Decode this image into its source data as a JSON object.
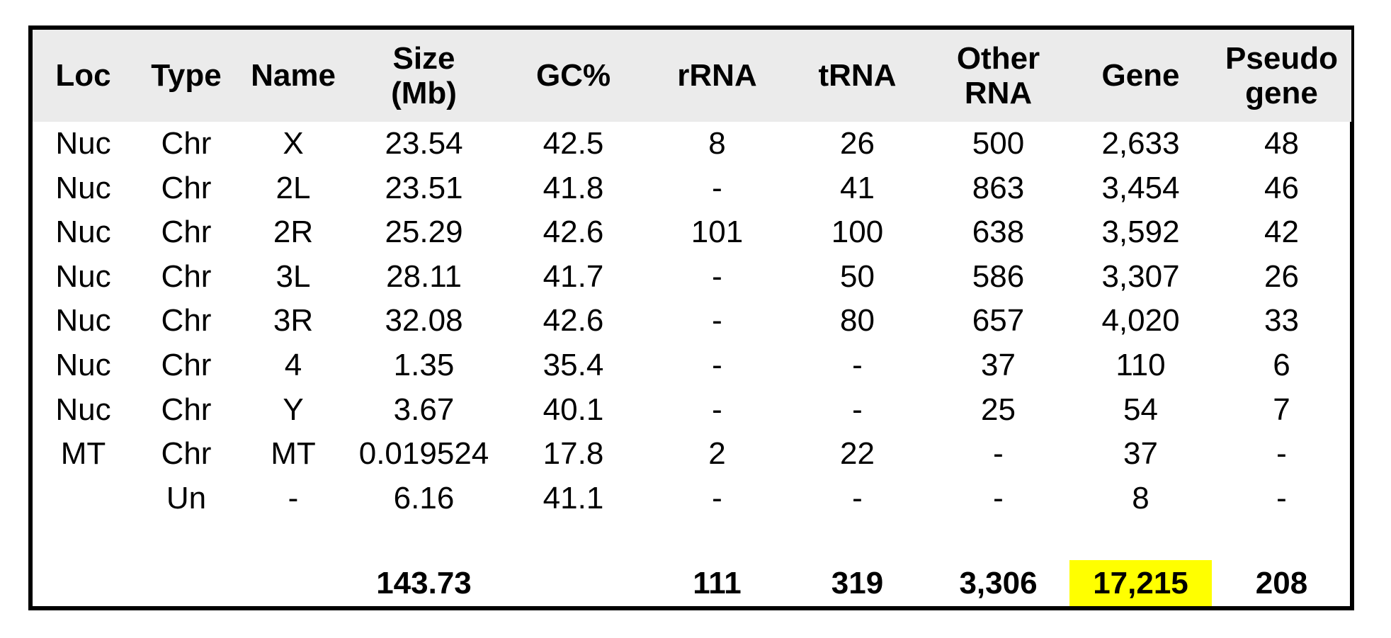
{
  "colors": {
    "header_bg": "#EBEBEB",
    "highlight": "#FFFF00",
    "border": "#000000",
    "text": "#000000"
  },
  "chart_data": {
    "type": "table",
    "title": "",
    "columns": [
      "Loc",
      "Type",
      "Name",
      "Size\n(Mb)",
      "GC%",
      "rRNA",
      "tRNA",
      "Other\nRNA",
      "Gene",
      "Pseudo\ngene"
    ],
    "rows": [
      [
        "Nuc",
        "Chr",
        "X",
        "23.54",
        "42.5",
        "8",
        "26",
        "500",
        "2,633",
        "48"
      ],
      [
        "Nuc",
        "Chr",
        "2L",
        "23.51",
        "41.8",
        "-",
        "41",
        "863",
        "3,454",
        "46"
      ],
      [
        "Nuc",
        "Chr",
        "2R",
        "25.29",
        "42.6",
        "101",
        "100",
        "638",
        "3,592",
        "42"
      ],
      [
        "Nuc",
        "Chr",
        "3L",
        "28.11",
        "41.7",
        "-",
        "50",
        "586",
        "3,307",
        "26"
      ],
      [
        "Nuc",
        "Chr",
        "3R",
        "32.08",
        "42.6",
        "-",
        "80",
        "657",
        "4,020",
        "33"
      ],
      [
        "Nuc",
        "Chr",
        "4",
        "1.35",
        "35.4",
        "-",
        "-",
        "37",
        "110",
        "6"
      ],
      [
        "Nuc",
        "Chr",
        "Y",
        "3.67",
        "40.1",
        "-",
        "-",
        "25",
        "54",
        "7"
      ],
      [
        "MT",
        "Chr",
        "MT",
        "0.019524",
        "17.8",
        "2",
        "22",
        "-",
        "37",
        "-"
      ],
      [
        "",
        "Un",
        "-",
        "6.16",
        "41.1",
        "-",
        "-",
        "-",
        "8",
        "-"
      ]
    ],
    "totals_row": [
      "",
      "",
      "",
      "143.73",
      "",
      "111",
      "319",
      "3,306",
      "17,215",
      "208"
    ],
    "highlight": {
      "row": "totals",
      "column": "Gene",
      "value": "17,215",
      "color": "#FFFF00"
    },
    "layout": {
      "gridlines": false,
      "outer_border": true,
      "header_background": "#EBEBEB",
      "totals_bold": true
    }
  }
}
